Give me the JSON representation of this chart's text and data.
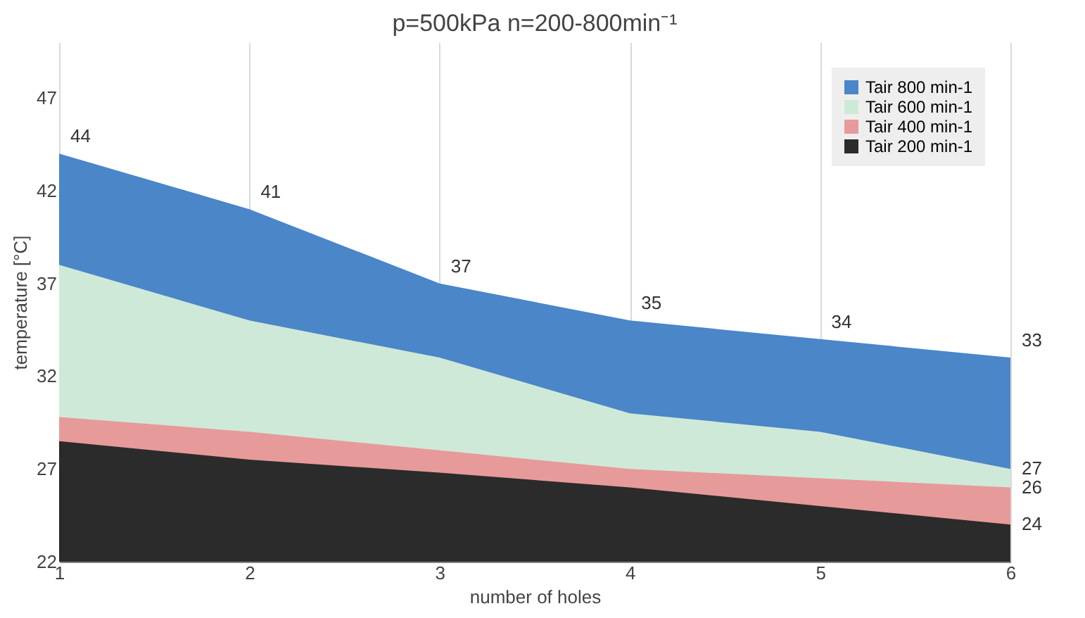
{
  "chart_data": {
    "type": "area",
    "title": "p=500kPa  n=200-800min⁻¹",
    "xlabel": "number of holes",
    "ylabel": "temperature  [°C]",
    "x": [
      1,
      2,
      3,
      4,
      5,
      6
    ],
    "xlim": [
      1,
      6
    ],
    "xticks": [
      1,
      2,
      3,
      4,
      5,
      6
    ],
    "ylim": [
      22,
      50
    ],
    "yticks": [
      22,
      27,
      32,
      37,
      42,
      47
    ],
    "grid": "x",
    "legend": "top right",
    "series": [
      {
        "name": "Tair 800 min-1",
        "color": "#4a86c8",
        "values": [
          44,
          41,
          37,
          35,
          34,
          33
        ],
        "value_labels": [
          "44",
          "41",
          "37",
          "35",
          "34",
          "33"
        ]
      },
      {
        "name": "Tair 600 min-1",
        "color": "#cfe9d8",
        "values": [
          38,
          35,
          33,
          30,
          29,
          27
        ],
        "value_labels": [
          null,
          null,
          null,
          null,
          null,
          "27"
        ]
      },
      {
        "name": "Tair 400 min-1",
        "color": "#e79a9a",
        "values": [
          29.8,
          29,
          28,
          27,
          26.5,
          26
        ],
        "value_labels": [
          null,
          null,
          null,
          null,
          null,
          "26"
        ]
      },
      {
        "name": "Tair 200 min-1",
        "color": "#2b2b2b",
        "values": [
          28.5,
          27.5,
          26.8,
          26,
          25,
          24
        ],
        "value_labels": [
          null,
          null,
          null,
          null,
          null,
          "24"
        ]
      }
    ]
  }
}
